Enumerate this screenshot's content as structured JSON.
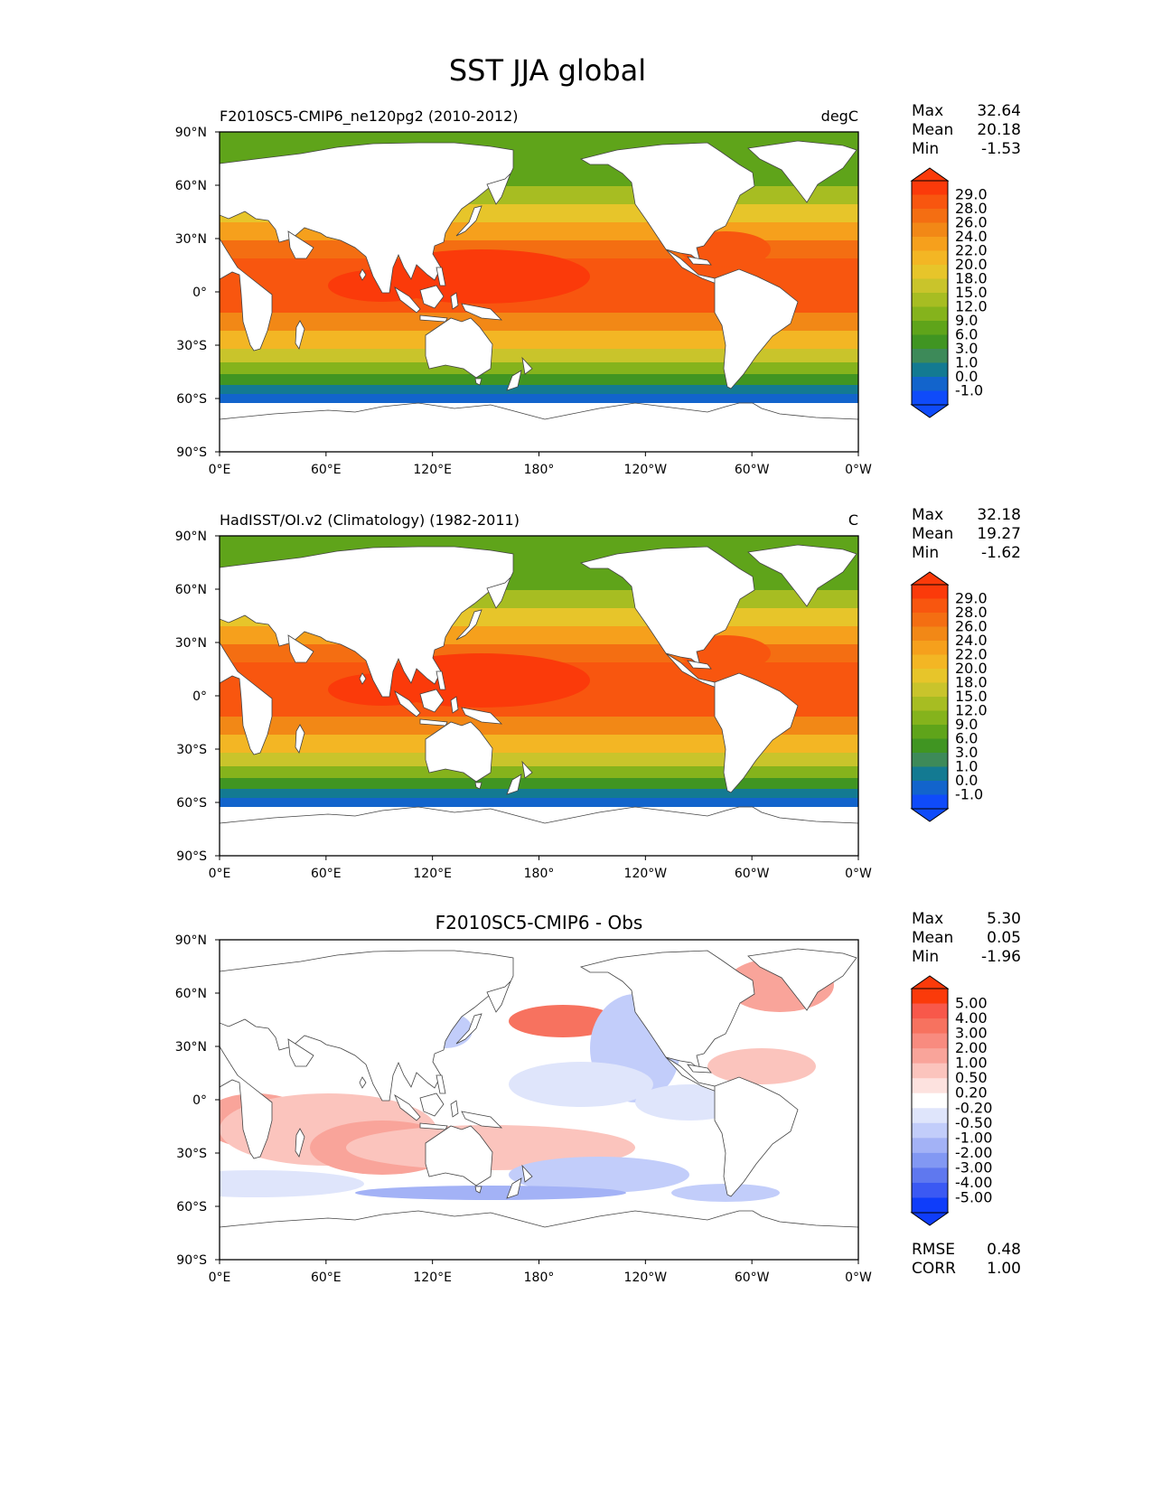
{
  "title": "SST JJA global",
  "lat_ticks": [
    "90°N",
    "60°N",
    "30°N",
    "0°",
    "30°S",
    "60°S",
    "90°S"
  ],
  "lon_ticks": [
    "0°E",
    "60°E",
    "120°E",
    "180°",
    "120°W",
    "60°W",
    "0°W"
  ],
  "panels": [
    {
      "id": "model",
      "left_title": "F2010SC5-CMIP6_ne120pg2 (2010-2012)",
      "center_title": "",
      "right_title": "degC",
      "stats": [
        {
          "label": "Max",
          "value": "32.64"
        },
        {
          "label": "Mean",
          "value": "20.18"
        },
        {
          "label": "Min",
          "value": "-1.53"
        }
      ],
      "colorbar": {
        "levels": [
          "29.0",
          "28.0",
          "26.0",
          "24.0",
          "22.0",
          "20.0",
          "18.0",
          "15.0",
          "12.0",
          "9.0",
          "6.0",
          "3.0",
          "1.0",
          "0.0",
          "-1.0"
        ],
        "colors": [
          "#fb3a0a",
          "#f8560f",
          "#f46e12",
          "#f28816",
          "#f6a01c",
          "#f3b624",
          "#e7c52a",
          "#c9c42b",
          "#a7bd22",
          "#85b31c",
          "#5fa41a",
          "#409522",
          "#3d8a59",
          "#137a92",
          "#1264cc",
          "#0f4bfa"
        ]
      },
      "footer": []
    },
    {
      "id": "obs",
      "left_title": "HadISST/OI.v2 (Climatology) (1982-2011)",
      "center_title": "",
      "right_title": "C",
      "stats": [
        {
          "label": "Max",
          "value": "32.18"
        },
        {
          "label": "Mean",
          "value": "19.27"
        },
        {
          "label": "Min",
          "value": "-1.62"
        }
      ],
      "colorbar": {
        "levels": [
          "29.0",
          "28.0",
          "26.0",
          "24.0",
          "22.0",
          "20.0",
          "18.0",
          "15.0",
          "12.0",
          "9.0",
          "6.0",
          "3.0",
          "1.0",
          "0.0",
          "-1.0"
        ],
        "colors": [
          "#fb3a0a",
          "#f8560f",
          "#f46e12",
          "#f28816",
          "#f6a01c",
          "#f3b624",
          "#e7c52a",
          "#c9c42b",
          "#a7bd22",
          "#85b31c",
          "#5fa41a",
          "#409522",
          "#3d8a59",
          "#137a92",
          "#1264cc",
          "#0f4bfa"
        ]
      },
      "footer": []
    },
    {
      "id": "diff",
      "left_title": "",
      "center_title": "F2010SC5-CMIP6 - Obs",
      "right_title": "",
      "stats": [
        {
          "label": "Max",
          "value": "5.30"
        },
        {
          "label": "Mean",
          "value": "0.05"
        },
        {
          "label": "Min",
          "value": "-1.96"
        }
      ],
      "colorbar": {
        "levels": [
          "5.00",
          "4.00",
          "3.00",
          "2.00",
          "1.00",
          "0.50",
          "0.20",
          "-0.20",
          "-0.50",
          "-1.00",
          "-2.00",
          "-3.00",
          "-4.00",
          "-5.00"
        ],
        "colors": [
          "#fb3a0a",
          "#f8584a",
          "#f7725f",
          "#f88b7f",
          "#f9a49a",
          "#fbc4bd",
          "#fde2df",
          "#ffffff",
          "#dfe5fb",
          "#c2cdfa",
          "#a3b2f6",
          "#8298f3",
          "#5f78ef",
          "#3b59f3",
          "#0f3dfa"
        ]
      },
      "footer": [
        {
          "label": "RMSE",
          "value": "0.48"
        },
        {
          "label": "CORR",
          "value": "1.00"
        }
      ]
    }
  ]
}
